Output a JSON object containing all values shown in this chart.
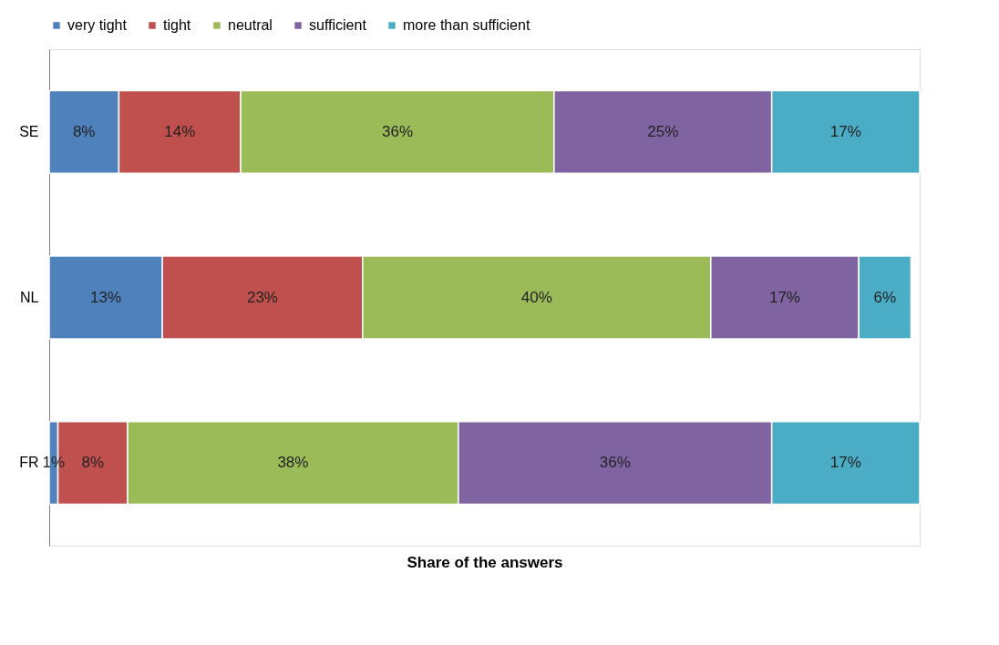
{
  "chart_data": {
    "type": "bar",
    "orientation": "horizontal",
    "stacked": true,
    "xlabel": "Share of the answers",
    "legend": "top",
    "grid": false,
    "categories": [
      "SE",
      "NL",
      "FR"
    ],
    "series": [
      {
        "name": "very tight",
        "color": "#4f81bd",
        "values": [
          8,
          13,
          1
        ],
        "value_labels": [
          "8%",
          "13%",
          "1%"
        ]
      },
      {
        "name": "tight",
        "color": "#c0504d",
        "values": [
          14,
          23,
          8
        ],
        "value_labels": [
          "14%",
          "23%",
          "8%"
        ]
      },
      {
        "name": "neutral",
        "color": "#9bbb59",
        "values": [
          36,
          40,
          38
        ],
        "value_labels": [
          "36%",
          "40%",
          "38%"
        ]
      },
      {
        "name": "sufficient",
        "color": "#8064a2",
        "values": [
          25,
          17,
          36
        ],
        "value_labels": [
          "25%",
          "17%",
          "36%"
        ]
      },
      {
        "name": "more than sufficient",
        "color": "#4bacc6",
        "values": [
          17,
          6,
          17
        ],
        "value_labels": [
          "17%",
          "6%",
          "17%"
        ]
      }
    ]
  }
}
